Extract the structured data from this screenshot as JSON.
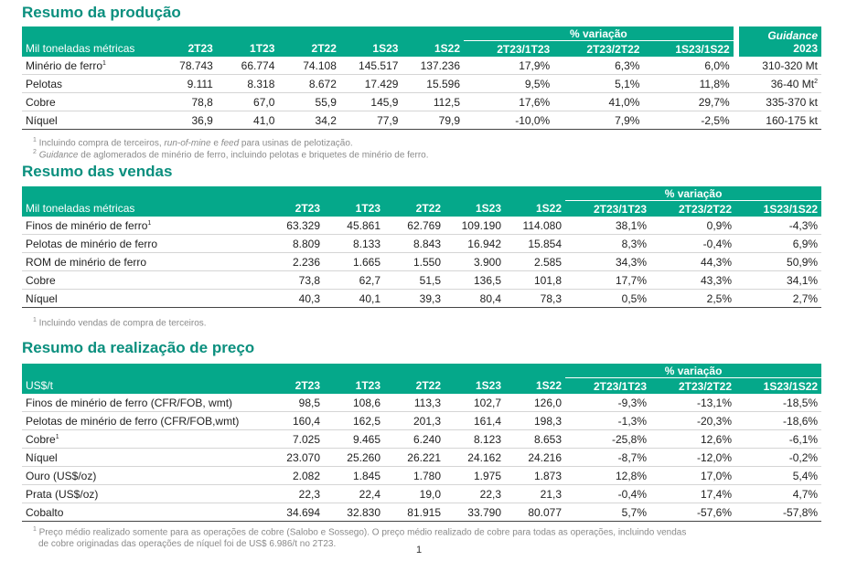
{
  "production": {
    "title": "Resumo da produção",
    "var_label": "% variação",
    "guidance_label": "Guidance",
    "guidance_year": "2023",
    "headers": [
      "Mil toneladas métricas",
      "2T23",
      "1T23",
      "2T22",
      "1S23",
      "1S22",
      "2T23/1T23",
      "2T23/2T22",
      "1S23/1S22"
    ],
    "rows": [
      {
        "label": "Minério de ferro",
        "sup": "1",
        "values": [
          "78.743",
          "66.774",
          "74.108",
          "145.517",
          "137.236",
          "17,9%",
          "6,3%",
          "6,0%"
        ],
        "guidance": "310-320 Mt",
        "guidance_sup": ""
      },
      {
        "label": "Pelotas",
        "sup": "",
        "values": [
          "9.111",
          "8.318",
          "8.672",
          "17.429",
          "15.596",
          "9,5%",
          "5,1%",
          "11,8%"
        ],
        "guidance": "36-40 Mt",
        "guidance_sup": "2"
      },
      {
        "label": "Cobre",
        "sup": "",
        "values": [
          "78,8",
          "67,0",
          "55,9",
          "145,9",
          "112,5",
          "17,6%",
          "41,0%",
          "29,7%"
        ],
        "guidance": "335-370 kt",
        "guidance_sup": ""
      },
      {
        "label": "Níquel",
        "sup": "",
        "values": [
          "36,9",
          "41,0",
          "34,2",
          "77,9",
          "79,9",
          "-10,0%",
          "7,9%",
          "-2,5%"
        ],
        "guidance": "160-175 kt",
        "guidance_sup": ""
      }
    ],
    "note1_sup": "1",
    "note1_a": " Incluindo compra de terceiros, ",
    "note1_b": "run-of-mine",
    "note1_c": " e ",
    "note1_d": "feed",
    "note1_e": " para usinas de pelotização.",
    "note2_sup": "2",
    "note2_a": " ",
    "note2_b": "Guidance",
    "note2_c": " de aglomerados de minério de ferro, incluindo pelotas e briquetes de minério de ferro."
  },
  "sales": {
    "title": "Resumo das vendas",
    "var_label": "% variação",
    "headers": [
      "Mil toneladas métricas",
      "2T23",
      "1T23",
      "2T22",
      "1S23",
      "1S22",
      "2T23/1T23",
      "2T23/2T22",
      "1S23/1S22"
    ],
    "rows": [
      {
        "label": "Finos de minério de ferro",
        "sup": "1",
        "values": [
          "63.329",
          "45.861",
          "62.769",
          "109.190",
          "114.080",
          "38,1%",
          "0,9%",
          "-4,3%"
        ]
      },
      {
        "label": "Pelotas de minério de ferro",
        "sup": "",
        "values": [
          "8.809",
          "8.133",
          "8.843",
          "16.942",
          "15.854",
          "8,3%",
          "-0,4%",
          "6,9%"
        ]
      },
      {
        "label": "ROM de minério de ferro",
        "sup": "",
        "values": [
          "2.236",
          "1.665",
          "1.550",
          "3.900",
          "2.585",
          "34,3%",
          "44,3%",
          "50,9%"
        ]
      },
      {
        "label": "Cobre",
        "sup": "",
        "values": [
          "73,8",
          "62,7",
          "51,5",
          "136,5",
          "101,8",
          "17,7%",
          "43,3%",
          "34,1%"
        ]
      },
      {
        "label": "Níquel",
        "sup": "",
        "values": [
          "40,3",
          "40,1",
          "39,3",
          "80,4",
          "78,3",
          "0,5%",
          "2,5%",
          "2,7%"
        ]
      }
    ],
    "note_sup": "1",
    "note": " Incluindo vendas de compra de terceiros."
  },
  "price": {
    "title": "Resumo da realização de preço",
    "var_label": "% variação",
    "headers": [
      "US$/t",
      "2T23",
      "1T23",
      "2T22",
      "1S23",
      "1S22",
      "2T23/1T23",
      "2T23/2T22",
      "1S23/1S22"
    ],
    "rows": [
      {
        "label": "Finos de minério de ferro (CFR/FOB, wmt)",
        "sup": "",
        "values": [
          "98,5",
          "108,6",
          "113,3",
          "102,7",
          "126,0",
          "-9,3%",
          "-13,1%",
          "-18,5%"
        ]
      },
      {
        "label": "Pelotas de minério de ferro (CFR/FOB,wmt)",
        "sup": "",
        "values": [
          "160,4",
          "162,5",
          "201,3",
          "161,4",
          "198,3",
          "-1,3%",
          "-20,3%",
          "-18,6%"
        ]
      },
      {
        "label": "Cobre",
        "sup": "1",
        "values": [
          "7.025",
          "9.465",
          "6.240",
          "8.123",
          "8.653",
          "-25,8%",
          "12,6%",
          "-6,1%"
        ]
      },
      {
        "label": "Níquel",
        "sup": "",
        "values": [
          "23.070",
          "25.260",
          "26.221",
          "24.162",
          "24.216",
          "-8,7%",
          "-12,0%",
          "-0,2%"
        ]
      },
      {
        "label": "Ouro (US$/oz)",
        "sup": "",
        "values": [
          "2.082",
          "1.845",
          "1.780",
          "1.975",
          "1.873",
          "12,8%",
          "17,0%",
          "5,4%"
        ]
      },
      {
        "label": "Prata (US$/oz)",
        "sup": "",
        "values": [
          "22,3",
          "22,4",
          "19,0",
          "22,3",
          "21,3",
          "-0,4%",
          "17,4%",
          "4,7%"
        ]
      },
      {
        "label": "Cobalto",
        "sup": "",
        "values": [
          "34.694",
          "32.830",
          "81.915",
          "33.790",
          "80.077",
          "5,7%",
          "-57,6%",
          "-57,8%"
        ]
      }
    ],
    "note_sup": "1",
    "note_line1": " Preço médio realizado somente para as operações de cobre (Salobo e Sossego). O preço médio realizado de cobre para todas as operações, incluindo vendas",
    "note_line2": "de cobre originadas das operações de níquel foi de US$ 6.986/t no 2T23."
  },
  "page_number": "1"
}
